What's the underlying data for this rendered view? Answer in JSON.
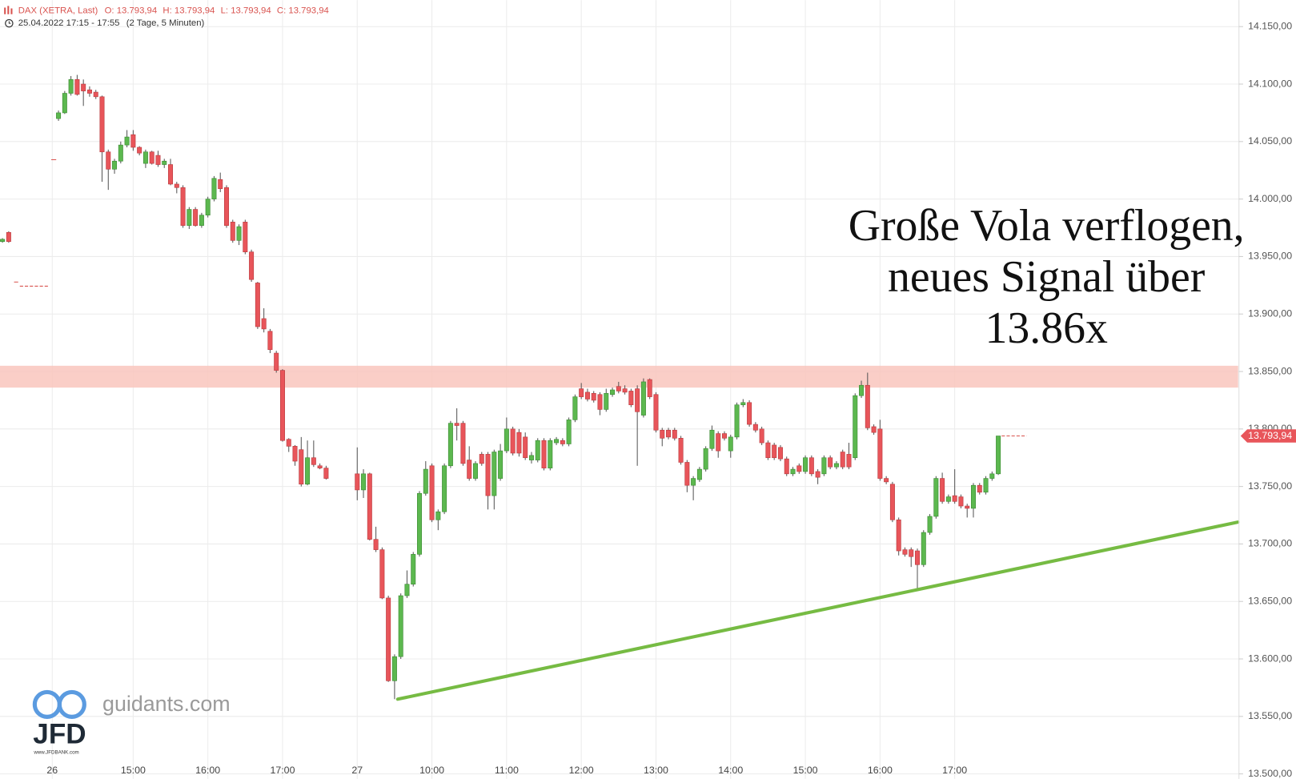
{
  "chart_data": {
    "type": "candlestick",
    "title": "DAX (XETRA, Last)",
    "ohlc_labels": [
      "O: 13.793,94",
      "H: 13.793,94",
      "L: 13.793,94",
      "C: 13.793,94"
    ],
    "subtitle": "25.04.2022 17:15 - 17:55",
    "subtitle_note": "(2 Tage, 5 Minuten)",
    "annotation": [
      "Große Vola verflogen,",
      "neues Signal über",
      "13.86x"
    ],
    "watermark": {
      "site": "guidants.com",
      "logo": "JFD",
      "url": "www.JFDBANK.com"
    },
    "categories": [
      null,
      null,
      null,
      null,
      null,
      null,
      null,
      null,
      "26",
      null,
      null,
      null,
      null,
      null,
      null,
      null,
      null,
      null,
      null,
      null,
      null,
      "15:00",
      null,
      null,
      null,
      null,
      null,
      null,
      null,
      null,
      null,
      null,
      null,
      "16:00",
      null,
      null,
      null,
      null,
      null,
      null,
      null,
      null,
      null,
      null,
      null,
      "17:00",
      null,
      null,
      null,
      null,
      null,
      null,
      null,
      null,
      null,
      null,
      null,
      "27",
      null,
      null,
      null,
      null,
      null,
      null,
      null,
      null,
      null,
      null,
      null,
      "10:00",
      null,
      null,
      null,
      null,
      null,
      null,
      null,
      null,
      null,
      null,
      null,
      "11:00",
      null,
      null,
      null,
      null,
      null,
      null,
      null,
      null,
      null,
      null,
      null,
      "12:00",
      null,
      null,
      null,
      null,
      null,
      null,
      null,
      null,
      null,
      null,
      null,
      "13:00",
      null,
      null,
      null,
      null,
      null,
      null,
      null,
      null,
      null,
      null,
      null,
      "14:00",
      null,
      null,
      null,
      null,
      null,
      null,
      null,
      null,
      null,
      null,
      null,
      "15:00",
      null,
      null,
      null,
      null,
      null,
      null,
      null,
      null,
      null,
      null,
      null,
      "16:00",
      null,
      null,
      null,
      null,
      null,
      null,
      null,
      null,
      null,
      null,
      null,
      "17:00",
      null,
      null,
      null,
      null,
      null,
      null,
      null
    ],
    "open": [
      13963,
      13971,
      null,
      null,
      null,
      null,
      null,
      null,
      null,
      14070,
      14075,
      14092,
      14104,
      14100,
      14095,
      14093,
      14089,
      14041,
      14026,
      14033,
      14047,
      14056,
      14045,
      14031,
      14041,
      14038,
      14030,
      14030,
      14013,
      14010,
      13977,
      13991,
      13977,
      13986,
      14000,
      14017,
      14010,
      13980,
      13964,
      13980,
      13954,
      13927,
      13896,
      13885,
      13866,
      13851,
      13791,
      13785,
      13782,
      13752,
      13775,
      13768,
      13766,
      null,
      null,
      null,
      null,
      13761,
      13747,
      13761,
      13704,
      13695,
      13653,
      13581,
      13602,
      13655,
      13665,
      13691,
      13744,
      13768,
      13721,
      13728,
      13768,
      13805,
      13805,
      13773,
      13757,
      13778,
      13778,
      13742,
      13757,
      13781,
      13800,
      13797,
      13793,
      13773,
      13773,
      13790,
      13766,
      13788,
      13790,
      13787,
      13808,
      13835,
      13832,
      13831,
      13830,
      13817,
      13830,
      13837,
      13835,
      13833,
      13835,
      13812,
      13843,
      13830,
      13799,
      13799,
      13799,
      13792,
      13771,
      13751,
      13756,
      13765,
      13783,
      13796,
      13796,
      13781,
      13793,
      13821,
      13823,
      13804,
      13800,
      13788,
      13786,
      13784,
      13774,
      13761,
      13768,
      13763,
      13775,
      13763,
      13761,
      13775,
      13767,
      13780,
      13778,
      13775,
      13829,
      13838,
      13802,
      13800,
      13757,
      13752,
      13721,
      13695,
      13695,
      13694,
      13682,
      13710,
      13724,
      13757,
      13737,
      13742,
      13741,
      13733,
      13731,
      13751,
      13745,
      13757,
      13761
    ],
    "high": [
      13966,
      13972,
      null,
      null,
      null,
      null,
      null,
      null,
      null,
      14077,
      14094,
      14107,
      14108,
      14104,
      14098,
      14095,
      14090,
      14043,
      14035,
      14050,
      14060,
      14060,
      14046,
      14043,
      14042,
      14042,
      14035,
      14035,
      14015,
      14012,
      13993,
      13993,
      13988,
      14002,
      14020,
      14023,
      14012,
      13982,
      13978,
      13982,
      13956,
      13928,
      13905,
      13887,
      13868,
      13852,
      13792,
      13786,
      13793,
      13790,
      13790,
      13770,
      13768,
      null,
      null,
      null,
      null,
      13784,
      13765,
      13762,
      13715,
      13697,
      13655,
      13604,
      13657,
      13677,
      13693,
      13746,
      13772,
      13770,
      13730,
      13770,
      13807,
      13818,
      13807,
      13785,
      13772,
      13780,
      13780,
      13782,
      13787,
      13810,
      13802,
      13800,
      13797,
      13780,
      13792,
      13792,
      13792,
      13793,
      13792,
      13810,
      13830,
      13840,
      13835,
      13833,
      13832,
      13835,
      13836,
      13841,
      13838,
      13835,
      13838,
      13844,
      13844,
      13832,
      13801,
      13801,
      13801,
      13794,
      13773,
      13759,
      13767,
      13785,
      13803,
      13798,
      13798,
      13795,
      13823,
      13826,
      13825,
      13806,
      13802,
      13790,
      13788,
      13786,
      13776,
      13767,
      13770,
      13777,
      13777,
      13765,
      13777,
      13777,
      13772,
      13782,
      13788,
      13831,
      13842,
      13849,
      13804,
      13808,
      13759,
      13754,
      13723,
      13697,
      13697,
      13696,
      13712,
      13726,
      13759,
      13762,
      13743,
      13765,
      13743,
      13735,
      13753,
      13753,
      13759,
      13763,
      13793.94
    ],
    "low": [
      13962,
      13962,
      null,
      null,
      null,
      null,
      null,
      null,
      null,
      14068,
      14074,
      14090,
      14090,
      14081,
      14089,
      14087,
      14015,
      14008,
      14022,
      14031,
      14045,
      14042,
      14038,
      14027,
      14030,
      14028,
      14027,
      14012,
      14005,
      13975,
      13974,
      13976,
      13975,
      13984,
      13998,
      14006,
      13975,
      13962,
      13960,
      13952,
      13928,
      13887,
      13884,
      13866,
      13849,
      13789,
      13780,
      13768,
      13750,
      13751,
      13767,
      13765,
      13756,
      null,
      null,
      null,
      null,
      13738,
      13740,
      13703,
      13693,
      13652,
      13580,
      13565,
      13600,
      13653,
      13663,
      13689,
      13742,
      13719,
      13712,
      13726,
      13766,
      13790,
      13768,
      13755,
      13755,
      13768,
      13730,
      13730,
      13755,
      13779,
      13777,
      13776,
      13773,
      13770,
      13771,
      13764,
      13764,
      13786,
      13785,
      13785,
      13806,
      13826,
      13824,
      13823,
      13812,
      13815,
      13828,
      13831,
      13830,
      13819,
      13768,
      13810,
      13826,
      13797,
      13785,
      13791,
      13790,
      13769,
      13745,
      13738,
      13754,
      13763,
      13781,
      13775,
      13790,
      13775,
      13791,
      13819,
      13802,
      13797,
      13786,
      13773,
      13773,
      13772,
      13759,
      13759,
      13761,
      13761,
      13759,
      13752,
      13759,
      13765,
      13765,
      13765,
      13765,
      13773,
      13827,
      13799,
      13795,
      13755,
      13752,
      13719,
      13690,
      13689,
      13680,
      13661,
      13680,
      13708,
      13722,
      13735,
      13735,
      13735,
      13731,
      13723,
      13723,
      13743,
      13743,
      13755,
      13760
    ],
    "close": [
      13965,
      13963,
      null,
      null,
      null,
      null,
      null,
      null,
      null,
      14075,
      14092,
      14104,
      14091,
      14094,
      14092,
      14089,
      14041,
      14026,
      14033,
      14047,
      14054,
      14045,
      14040,
      14041,
      14031,
      14030,
      14033,
      14013,
      14010,
      13977,
      13991,
      13977,
      13986,
      14000,
      14018,
      14009,
      13977,
      13964,
      13976,
      13954,
      13930,
      13889,
      13887,
      13869,
      13851,
      13790,
      13785,
      13772,
      13752,
      13775,
      13769,
      13766,
      13757,
      null,
      null,
      null,
      null,
      13747,
      13761,
      13704,
      13695,
      13653,
      13581,
      13602,
      13655,
      13665,
      13691,
      13744,
      13765,
      13721,
      13728,
      13768,
      13805,
      13803,
      13770,
      13757,
      13770,
      13770,
      13742,
      13780,
      13781,
      13800,
      13779,
      13779,
      13775,
      13777,
      13790,
      13766,
      13790,
      13791,
      13787,
      13808,
      13828,
      13828,
      13826,
      13825,
      13817,
      13831,
      13834,
      13833,
      13832,
      13821,
      13815,
      13841,
      13828,
      13799,
      13792,
      13793,
      13792,
      13771,
      13751,
      13757,
      13765,
      13783,
      13799,
      13781,
      13792,
      13793,
      13821,
      13823,
      13804,
      13799,
      13788,
      13775,
      13775,
      13774,
      13761,
      13765,
      13763,
      13775,
      13761,
      13758,
      13775,
      13767,
      13770,
      13767,
      13767,
      13829,
      13838,
      13801,
      13797,
      13757,
      13754,
      13721,
      13694,
      13691,
      13689,
      13682,
      13710,
      13724,
      13757,
      13737,
      13741,
      13737,
      13733,
      13731,
      13751,
      13745,
      13757,
      13761,
      13793.94
    ],
    "up_color": "#5cb84f",
    "down_color": "#e8555a",
    "last_price": {
      "value": 13793.94,
      "label": "13.793,94"
    },
    "zone": [
      13836,
      13855
    ],
    "zone_color": "#f9c6bd",
    "trendline": {
      "x": [
        63.5,
        198.5
      ],
      "y": [
        13565,
        13719
      ],
      "color": "#76bb43"
    },
    "ylim": [
      13500,
      14150
    ],
    "yticks": [
      {
        "value": 13500,
        "label": "13.500,00"
      },
      {
        "value": 13550,
        "label": "13.550,00"
      },
      {
        "value": 13600,
        "label": "13.600,00"
      },
      {
        "value": 13650,
        "label": "13.650,00"
      },
      {
        "value": 13700,
        "label": "13.700,00"
      },
      {
        "value": 13750,
        "label": "13.750,00"
      },
      {
        "value": 13800,
        "label": "13.800,00"
      },
      {
        "value": 13850,
        "label": "13.850,00"
      },
      {
        "value": 13900,
        "label": "13.900,00"
      },
      {
        "value": 13950,
        "label": "13.950,00"
      },
      {
        "value": 14000,
        "label": "14.000,00"
      },
      {
        "value": 14050,
        "label": "14.050,00"
      },
      {
        "value": 14100,
        "label": "14.100,00"
      },
      {
        "value": 14150,
        "label": "14.150,00"
      }
    ],
    "grid": true
  }
}
